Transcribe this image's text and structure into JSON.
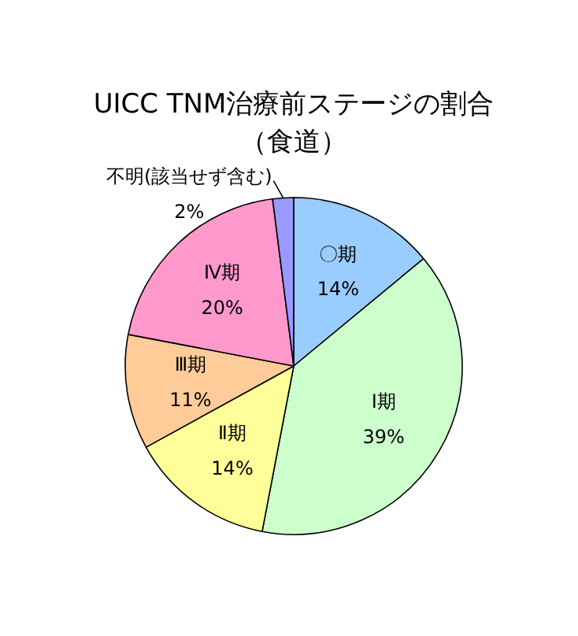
{
  "chart_data": {
    "type": "pie",
    "title": "UICC TNM治療前ステージの割合",
    "subtitle": "（食道）",
    "categories": [
      "〇期",
      "Ⅰ期",
      "Ⅱ期",
      "Ⅲ期",
      "Ⅳ期",
      "不明(該当せず含む)"
    ],
    "values": [
      14,
      39,
      14,
      11,
      20,
      2
    ],
    "value_labels": [
      "14%",
      "39%",
      "14%",
      "11%",
      "20%",
      "2%"
    ],
    "colors": [
      "#99ccff",
      "#ccffcc",
      "#ffff99",
      "#ffcc99",
      "#ff99cc",
      "#9999ff"
    ]
  }
}
